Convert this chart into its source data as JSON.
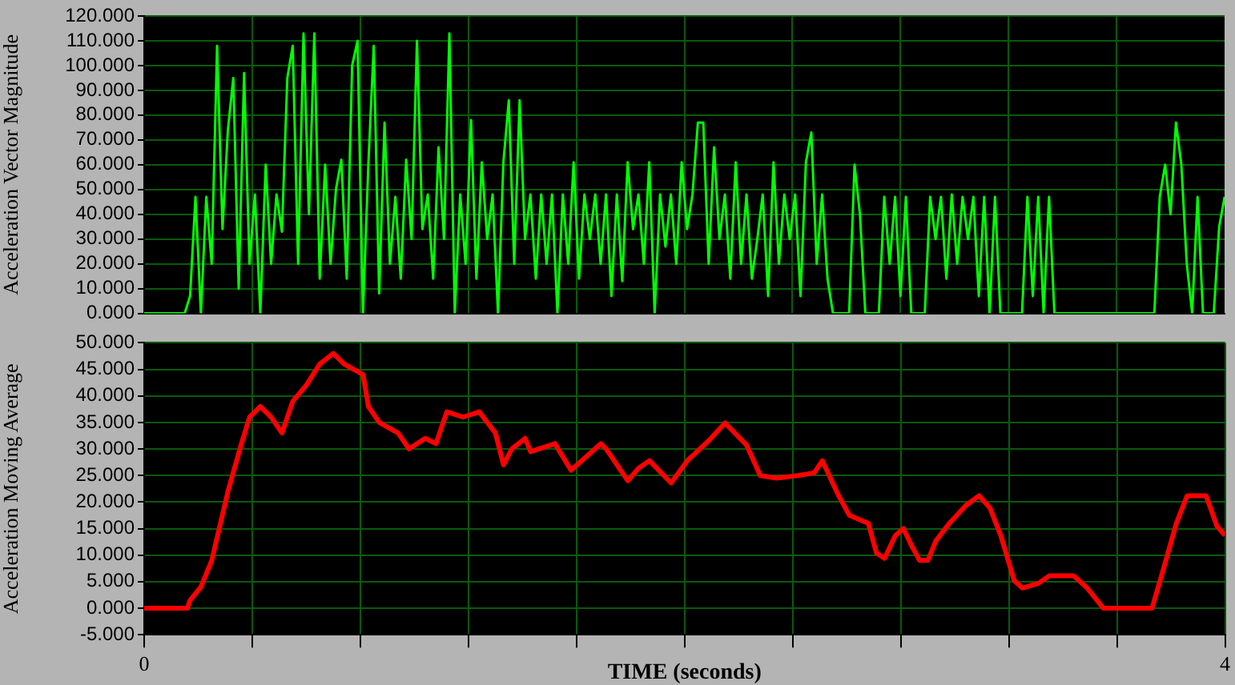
{
  "chart_data": [
    {
      "type": "line",
      "ylabel": "Acceleration Vector Magnitude",
      "marker": "none",
      "grid": true,
      "tick_labels": "y",
      "xlim": [
        0,
        4
      ],
      "xticks": [
        {
          "value": 0.4,
          "label": null
        },
        {
          "value": 0.8,
          "label": null
        },
        {
          "value": 1.2,
          "label": null
        },
        {
          "value": 1.6,
          "label": null
        },
        {
          "value": 2,
          "label": null
        },
        {
          "value": 2.4,
          "label": null
        },
        {
          "value": 2.8,
          "label": null
        },
        {
          "value": 3.2,
          "label": null
        },
        {
          "value": 3.6,
          "label": null
        }
      ],
      "ylim": [
        0,
        120
      ],
      "yticks": [
        {
          "value": 0,
          "label": "0.000"
        },
        {
          "value": 10,
          "label": "10.000"
        },
        {
          "value": 20,
          "label": "20.000"
        },
        {
          "value": 30,
          "label": "30.000"
        },
        {
          "value": 40,
          "label": "40.000"
        },
        {
          "value": 50,
          "label": "50.000"
        },
        {
          "value": 60,
          "label": "60.000"
        },
        {
          "value": 70,
          "label": "70.000"
        },
        {
          "value": 80,
          "label": "80.000"
        },
        {
          "value": 90,
          "label": "90.000"
        },
        {
          "value": 100,
          "label": "100.000"
        },
        {
          "value": 110,
          "label": "110.000"
        },
        {
          "value": 120,
          "label": "120.000"
        }
      ],
      "x": [
        0,
        0.15,
        0.17,
        0.19,
        0.21,
        0.23,
        0.25,
        0.27,
        0.29,
        0.31,
        0.33,
        0.35,
        0.37,
        0.39,
        0.41,
        0.43,
        0.45,
        0.47,
        0.49,
        0.51,
        0.53,
        0.55,
        0.57,
        0.59,
        0.61,
        0.63,
        0.65,
        0.67,
        0.69,
        0.71,
        0.73,
        0.75,
        0.77,
        0.79,
        0.81,
        0.83,
        0.85,
        0.87,
        0.89,
        0.91,
        0.93,
        0.95,
        0.97,
        0.99,
        1.01,
        1.03,
        1.05,
        1.07,
        1.09,
        1.11,
        1.13,
        1.15,
        1.17,
        1.19,
        1.21,
        1.23,
        1.25,
        1.27,
        1.29,
        1.31,
        1.33,
        1.35,
        1.37,
        1.39,
        1.41,
        1.43,
        1.45,
        1.47,
        1.49,
        1.51,
        1.53,
        1.55,
        1.57,
        1.59,
        1.61,
        1.63,
        1.65,
        1.67,
        1.69,
        1.71,
        1.73,
        1.75,
        1.77,
        1.79,
        1.81,
        1.83,
        1.85,
        1.87,
        1.89,
        1.91,
        1.93,
        1.95,
        1.97,
        1.99,
        2.01,
        2.03,
        2.05,
        2.07,
        2.09,
        2.11,
        2.13,
        2.15,
        2.17,
        2.19,
        2.21,
        2.23,
        2.25,
        2.27,
        2.29,
        2.31,
        2.33,
        2.35,
        2.37,
        2.39,
        2.41,
        2.43,
        2.45,
        2.47,
        2.49,
        2.51,
        2.53,
        2.55,
        2.61,
        2.63,
        2.65,
        2.67,
        2.72,
        2.74,
        2.76,
        2.78,
        2.8,
        2.82,
        2.84,
        2.89,
        2.91,
        2.93,
        2.95,
        2.97,
        2.99,
        3.01,
        3.03,
        3.05,
        3.07,
        3.09,
        3.11,
        3.13,
        3.15,
        3.17,
        3.25,
        3.27,
        3.29,
        3.31,
        3.33,
        3.35,
        3.37,
        3.74,
        3.76,
        3.78,
        3.8,
        3.82,
        3.84,
        3.86,
        3.88,
        3.9,
        3.92,
        3.96,
        3.98,
        4
      ],
      "series": [
        {
          "color": "#00ff00",
          "values": [
            0,
            0,
            7,
            47,
            0,
            47,
            20,
            108,
            34,
            74,
            95,
            10,
            97,
            20,
            48,
            0,
            60,
            20,
            48,
            33,
            95,
            108,
            20,
            113,
            40,
            113,
            14,
            60,
            20,
            50,
            62,
            14,
            100,
            110,
            0,
            60,
            108,
            8,
            77,
            20,
            47,
            14,
            62,
            30,
            110,
            34,
            48,
            14,
            67,
            30,
            113,
            0,
            48,
            20,
            78,
            14,
            61,
            30,
            48,
            0,
            61,
            86,
            20,
            86,
            30,
            48,
            14,
            48,
            20,
            48,
            0,
            48,
            20,
            61,
            14,
            48,
            30,
            48,
            20,
            48,
            7,
            48,
            13,
            61,
            34,
            48,
            20,
            61,
            0,
            48,
            27,
            48,
            20,
            61,
            34,
            48,
            77,
            77,
            20,
            67,
            30,
            48,
            14,
            61,
            20,
            48,
            14,
            30,
            48,
            7,
            61,
            20,
            48,
            30,
            48,
            7,
            61,
            73,
            20,
            48,
            14,
            0,
            0,
            60,
            40,
            0,
            0,
            47,
            20,
            47,
            7,
            47,
            0,
            0,
            47,
            30,
            47,
            14,
            48,
            20,
            47,
            30,
            47,
            7,
            47,
            0,
            47,
            0,
            0,
            47,
            7,
            47,
            0,
            47,
            0,
            0,
            47,
            60,
            40,
            77,
            60,
            20,
            0,
            47,
            0,
            0,
            35,
            47
          ]
        }
      ]
    },
    {
      "type": "line",
      "xlabel": "TIME (seconds)",
      "ylabel": "Acceleration Moving Average",
      "marker": "none",
      "grid": true,
      "xlim": [
        0,
        4
      ],
      "xticks": [
        0,
        {
          "value": 0.4,
          "label": null
        },
        {
          "value": 0.8,
          "label": null
        },
        {
          "value": 1.2,
          "label": null
        },
        {
          "value": 1.6,
          "label": null
        },
        {
          "value": 2,
          "label": null
        },
        {
          "value": 2.4,
          "label": null
        },
        {
          "value": 2.8,
          "label": null
        },
        {
          "value": 3.2,
          "label": null
        },
        {
          "value": 3.6,
          "label": null
        },
        4
      ],
      "ylim": [
        -5,
        50
      ],
      "yticks": [
        {
          "value": -5,
          "label": "-5.000"
        },
        {
          "value": 0,
          "label": "0.000"
        },
        {
          "value": 5,
          "label": "5.000"
        },
        {
          "value": 10,
          "label": "10.000"
        },
        {
          "value": 15,
          "label": "15.000"
        },
        {
          "value": 20,
          "label": "20.000"
        },
        {
          "value": 25,
          "label": "25.000"
        },
        {
          "value": 30,
          "label": "30.000"
        },
        {
          "value": 35,
          "label": "35.000"
        },
        {
          "value": 40,
          "label": "40.000"
        },
        {
          "value": 45,
          "label": "45.000"
        },
        {
          "value": 50,
          "label": "50.000"
        }
      ],
      "x": [
        0,
        0.16,
        0.17,
        0.21,
        0.25,
        0.31,
        0.36,
        0.39,
        0.43,
        0.47,
        0.51,
        0.55,
        0.6,
        0.65,
        0.7,
        0.74,
        0.81,
        0.83,
        0.87,
        0.94,
        0.98,
        1.04,
        1.08,
        1.12,
        1.18,
        1.24,
        1.3,
        1.33,
        1.36,
        1.41,
        1.43,
        1.52,
        1.58,
        1.69,
        1.71,
        1.79,
        1.83,
        1.87,
        1.95,
        2.01,
        2.09,
        2.15,
        2.23,
        2.28,
        2.34,
        2.42,
        2.48,
        2.51,
        2.57,
        2.61,
        2.68,
        2.71,
        2.74,
        2.78,
        2.81,
        2.84,
        2.87,
        2.9,
        2.93,
        2.98,
        3.04,
        3.09,
        3.13,
        3.17,
        3.22,
        3.25,
        3.31,
        3.35,
        3.44,
        3.49,
        3.55,
        3.73,
        3.77,
        3.82,
        3.86,
        3.93,
        3.97,
        4
      ],
      "series": [
        {
          "color": "#ff0000",
          "values": [
            0,
            0,
            1.5,
            4,
            9,
            22,
            31,
            36,
            38,
            36,
            33,
            39,
            42,
            46,
            48,
            46,
            44,
            38,
            35,
            33,
            30,
            32,
            31,
            37,
            36,
            37,
            33,
            27,
            30,
            32,
            29.5,
            31,
            26,
            31,
            30,
            24,
            26.4,
            27.8,
            23.6,
            27.8,
            31.6,
            34.9,
            30.7,
            25,
            24.5,
            25,
            25.5,
            27.8,
            21.2,
            17.5,
            16,
            10.4,
            9.4,
            13.7,
            15,
            11.8,
            9,
            9,
            12.7,
            16,
            19.3,
            21.2,
            18.9,
            13.7,
            5.2,
            3.8,
            4.7,
            6.1,
            6.1,
            3.8,
            0,
            0,
            7,
            16,
            21.2,
            21.2,
            15.5,
            13.7
          ]
        }
      ]
    }
  ]
}
